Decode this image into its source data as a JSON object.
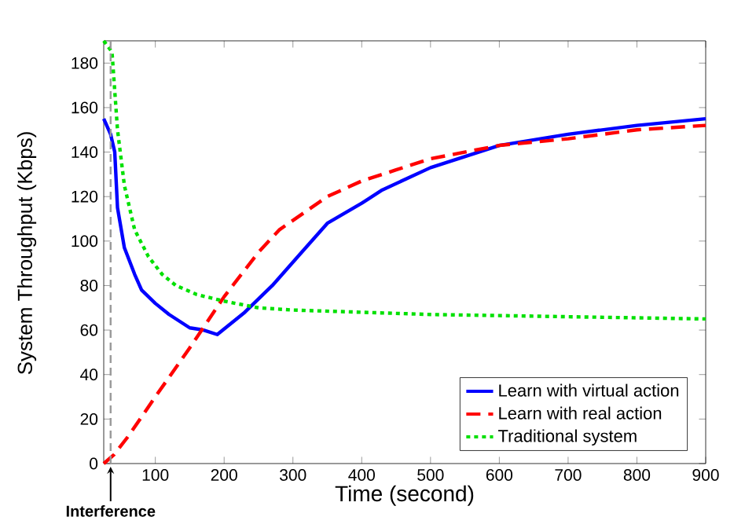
{
  "chart_data": {
    "type": "line",
    "xlabel": "Time (second)",
    "ylabel": "System Throughput (Kbps)",
    "xlim": [
      25,
      900
    ],
    "xticks": [
      100,
      200,
      300,
      400,
      500,
      600,
      700,
      800,
      900
    ],
    "ylim": [
      0,
      190
    ],
    "yticks": [
      0,
      20,
      40,
      60,
      80,
      100,
      120,
      140,
      160,
      180
    ],
    "grid": false,
    "legend": "bottom right",
    "marker": "none",
    "ref_lines": [
      {
        "axis": "x",
        "value": 35,
        "label": "Interference",
        "color": "#999999",
        "line_style": "dashed"
      }
    ],
    "series": [
      {
        "name": "Learn with virtual action",
        "color": "#0000ff",
        "line_style": "solid",
        "x": [
          25,
          35,
          41,
          45,
          55,
          70,
          80,
          100,
          120,
          150,
          170,
          190,
          230,
          270,
          310,
          350,
          400,
          430,
          500,
          600,
          700,
          800,
          900
        ],
        "values": [
          155,
          148,
          140,
          115,
          97,
          85,
          78,
          72,
          67,
          61,
          60,
          58,
          68,
          80,
          94,
          108,
          117,
          123,
          133,
          143,
          148,
          152,
          155
        ]
      },
      {
        "name": "Learn with real action",
        "color": "#ff0000",
        "line_style": "dashed",
        "x": [
          25,
          40,
          60,
          100,
          150,
          200,
          250,
          280,
          350,
          400,
          450,
          500,
          600,
          700,
          800,
          900
        ],
        "values": [
          0,
          4,
          12,
          30,
          52,
          75,
          95,
          105,
          120,
          127,
          132,
          137,
          143,
          146,
          150,
          152
        ]
      },
      {
        "name": "Traditional system",
        "color": "#00e000",
        "line_style": "dotted",
        "x": [
          25,
          37,
          45,
          55,
          70,
          90,
          110,
          130,
          160,
          200,
          250,
          300,
          400,
          500,
          600,
          700,
          800,
          900
        ],
        "values": [
          190,
          185,
          150,
          125,
          105,
          93,
          85,
          80,
          76,
          73,
          70,
          69,
          68,
          67,
          66.5,
          66,
          65.5,
          65
        ]
      }
    ]
  }
}
